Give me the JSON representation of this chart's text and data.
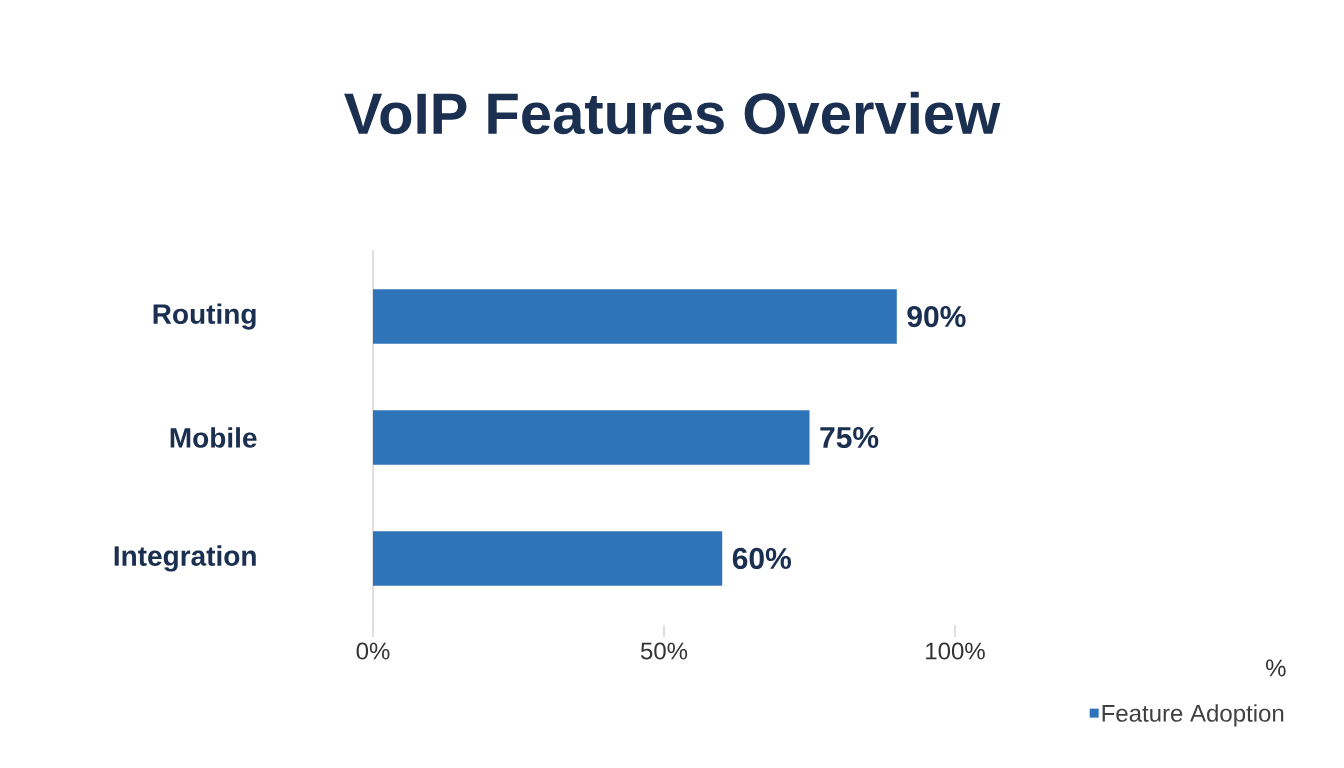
{
  "chart_data": {
    "type": "bar",
    "orientation": "horizontal",
    "title": "VoIP Features Overview",
    "annotations": [
      "%"
    ],
    "categories": [
      "Routing",
      "Mobile",
      "Integration"
    ],
    "series": [
      {
        "name": "Feature Adoption",
        "color": "#2f74b8",
        "values": [
          90,
          75,
          60
        ],
        "value_labels": [
          "90%",
          "75%",
          "60%"
        ]
      }
    ],
    "xlim": [
      0,
      100
    ],
    "xticks": [
      {
        "value": 0,
        "label": "0%"
      },
      {
        "value": 50,
        "label": "50%"
      },
      {
        "value": 100,
        "label": "100%"
      }
    ],
    "legend": "bottom right"
  }
}
